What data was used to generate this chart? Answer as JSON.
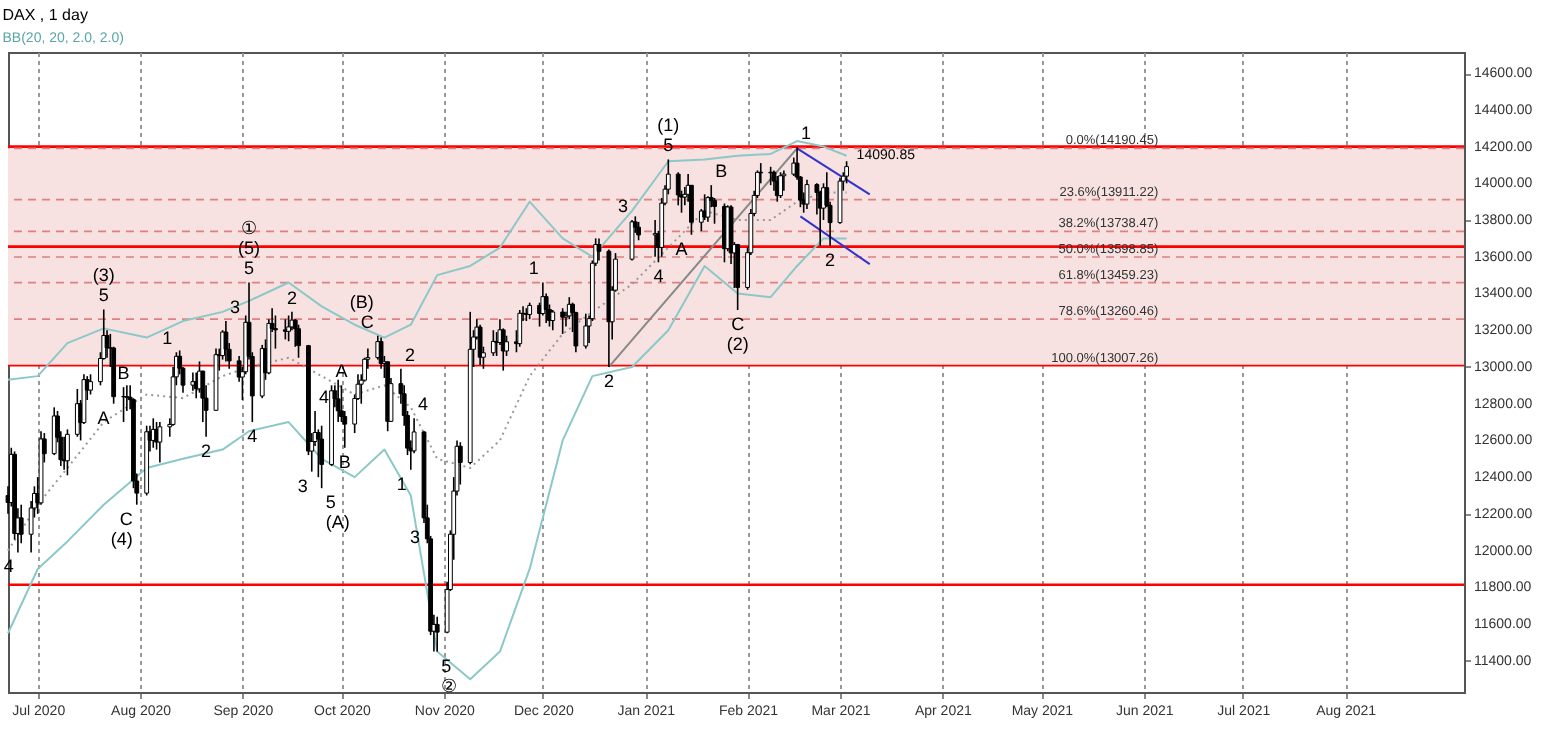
{
  "chart_data": {
    "type": "candlestick",
    "title": "DAX , 1 day",
    "subtitle": "BB(20, 20, 2.0, 2.0)",
    "color": "#000000",
    "x": [
      "2020-06-22",
      "2020-06-23",
      "2020-06-24",
      "2020-06-25",
      "2020-06-26",
      "2020-06-29",
      "2020-06-30",
      "2020-07-01",
      "2020-07-02",
      "2020-07-03",
      "2020-07-06",
      "2020-07-07",
      "2020-07-08",
      "2020-07-09",
      "2020-07-10",
      "2020-07-13",
      "2020-07-14",
      "2020-07-15",
      "2020-07-16",
      "2020-07-17",
      "2020-07-20",
      "2020-07-21",
      "2020-07-22",
      "2020-07-23",
      "2020-07-24",
      "2020-07-27",
      "2020-07-28",
      "2020-07-29",
      "2020-07-30",
      "2020-07-31",
      "2020-08-03",
      "2020-08-04",
      "2020-08-05",
      "2020-08-06",
      "2020-08-07",
      "2020-08-10",
      "2020-08-11",
      "2020-08-12",
      "2020-08-13",
      "2020-08-14",
      "2020-08-17",
      "2020-08-18",
      "2020-08-19",
      "2020-08-20",
      "2020-08-21",
      "2020-08-24",
      "2020-08-25",
      "2020-08-26",
      "2020-08-27",
      "2020-08-28",
      "2020-08-31",
      "2020-09-01",
      "2020-09-02",
      "2020-09-03",
      "2020-09-04",
      "2020-09-07",
      "2020-09-08",
      "2020-09-09",
      "2020-09-10",
      "2020-09-11",
      "2020-09-14",
      "2020-09-15",
      "2020-09-16",
      "2020-09-17",
      "2020-09-18",
      "2020-09-21",
      "2020-09-22",
      "2020-09-23",
      "2020-09-24",
      "2020-09-25",
      "2020-09-28",
      "2020-09-29",
      "2020-09-30",
      "2020-10-01",
      "2020-10-02",
      "2020-10-05",
      "2020-10-06",
      "2020-10-07",
      "2020-10-08",
      "2020-10-09",
      "2020-10-12",
      "2020-10-13",
      "2020-10-14",
      "2020-10-15",
      "2020-10-16",
      "2020-10-19",
      "2020-10-20",
      "2020-10-21",
      "2020-10-22",
      "2020-10-23",
      "2020-10-26",
      "2020-10-27",
      "2020-10-28",
      "2020-10-29",
      "2020-10-30",
      "2020-11-02",
      "2020-11-03",
      "2020-11-04",
      "2020-11-05",
      "2020-11-06",
      "2020-11-09",
      "2020-11-10",
      "2020-11-11",
      "2020-11-12",
      "2020-11-13",
      "2020-11-16",
      "2020-11-17",
      "2020-11-18",
      "2020-11-19",
      "2020-11-20",
      "2020-11-23",
      "2020-11-24",
      "2020-11-25",
      "2020-11-26",
      "2020-11-27",
      "2020-11-30",
      "2020-12-01",
      "2020-12-02",
      "2020-12-03",
      "2020-12-04",
      "2020-12-07",
      "2020-12-08",
      "2020-12-09",
      "2020-12-10",
      "2020-12-11",
      "2020-12-14",
      "2020-12-15",
      "2020-12-16",
      "2020-12-17",
      "2020-12-18",
      "2020-12-21",
      "2020-12-22",
      "2020-12-23",
      "2020-12-28",
      "2020-12-29",
      "2020-12-30",
      "2021-01-04",
      "2021-01-05",
      "2021-01-06",
      "2021-01-07",
      "2021-01-08",
      "2021-01-11",
      "2021-01-12",
      "2021-01-13",
      "2021-01-14",
      "2021-01-15",
      "2021-01-18",
      "2021-01-19",
      "2021-01-20",
      "2021-01-21",
      "2021-01-22",
      "2021-01-25",
      "2021-01-26",
      "2021-01-27",
      "2021-01-28",
      "2021-01-29",
      "2021-02-01",
      "2021-02-02",
      "2021-02-03",
      "2021-02-04",
      "2021-02-05",
      "2021-02-08",
      "2021-02-09",
      "2021-02-10",
      "2021-02-11",
      "2021-02-12",
      "2021-02-15",
      "2021-02-16",
      "2021-02-17",
      "2021-02-18",
      "2021-02-19",
      "2021-02-22",
      "2021-02-23",
      "2021-02-24",
      "2021-02-25",
      "2021-02-26",
      "2021-03-01",
      "2021-03-02",
      "2021-03-03"
    ],
    "ohlc": [
      [
        12300,
        12350,
        12200,
        12262
      ],
      [
        12262,
        12560,
        12240,
        12524
      ],
      [
        12524,
        12540,
        12060,
        12093
      ],
      [
        12093,
        12230,
        11990,
        12178
      ],
      [
        12178,
        12250,
        12040,
        12089
      ],
      [
        12089,
        12270,
        11990,
        12232
      ],
      [
        12232,
        12350,
        12180,
        12311
      ],
      [
        12311,
        12400,
        12200,
        12260
      ],
      [
        12260,
        12650,
        12250,
        12608
      ],
      [
        12608,
        12640,
        12480,
        12528
      ],
      [
        12528,
        12780,
        12520,
        12733
      ],
      [
        12733,
        12760,
        12590,
        12617
      ],
      [
        12617,
        12650,
        12460,
        12495
      ],
      [
        12495,
        12620,
        12440,
        12489
      ],
      [
        12489,
        12660,
        12410,
        12633
      ],
      [
        12633,
        12880,
        12620,
        12800
      ],
      [
        12800,
        12820,
        12600,
        12697
      ],
      [
        12697,
        12960,
        12690,
        12931
      ],
      [
        12931,
        12950,
        12820,
        12874
      ],
      [
        12874,
        12960,
        12850,
        12920
      ],
      [
        12920,
        13080,
        12900,
        13046
      ],
      [
        13046,
        13313,
        13040,
        13171
      ],
      [
        13171,
        13200,
        13050,
        13104
      ],
      [
        13104,
        13180,
        13000,
        13103
      ],
      [
        13103,
        13110,
        12800,
        12838
      ],
      [
        12838,
        12890,
        12700,
        12838
      ],
      [
        12838,
        12900,
        12760,
        12835
      ],
      [
        12835,
        12900,
        12770,
        12822
      ],
      [
        12822,
        12830,
        12340,
        12379
      ],
      [
        12379,
        12420,
        12250,
        12313
      ],
      [
        12313,
        12680,
        12300,
        12647
      ],
      [
        12647,
        12680,
        12540,
        12600
      ],
      [
        12600,
        12720,
        12560,
        12660
      ],
      [
        12660,
        12700,
        12550,
        12591
      ],
      [
        12591,
        12700,
        12480,
        12674
      ],
      [
        12674,
        12720,
        12620,
        12687
      ],
      [
        12687,
        13000,
        12680,
        12946
      ],
      [
        12946,
        13080,
        12900,
        13058
      ],
      [
        13058,
        13090,
        12960,
        12993
      ],
      [
        12993,
        13000,
        12860,
        12901
      ],
      [
        12901,
        12970,
        12870,
        12920
      ],
      [
        12920,
        12970,
        12830,
        12881
      ],
      [
        12881,
        13030,
        12860,
        12977
      ],
      [
        12977,
        12980,
        12700,
        12830
      ],
      [
        12830,
        12900,
        12620,
        12764
      ],
      [
        12764,
        13100,
        12760,
        13067
      ],
      [
        13067,
        13100,
        12980,
        13062
      ],
      [
        13062,
        13200,
        13040,
        13190
      ],
      [
        13190,
        13250,
        13030,
        13096
      ],
      [
        13096,
        13130,
        12990,
        13033
      ],
      [
        13033,
        13060,
        12920,
        12945
      ],
      [
        12945,
        13000,
        12820,
        12974
      ],
      [
        12974,
        13280,
        12960,
        13243
      ],
      [
        13243,
        13460,
        13040,
        13057
      ],
      [
        13057,
        13080,
        12700,
        12842
      ],
      [
        12842,
        13120,
        12830,
        13100
      ],
      [
        13100,
        13150,
        12930,
        12968
      ],
      [
        12968,
        13260,
        12960,
        13237
      ],
      [
        13237,
        13320,
        13190,
        13209
      ],
      [
        13209,
        13280,
        13100,
        13202
      ],
      [
        13202,
        13260,
        13150,
        13194
      ],
      [
        13194,
        13280,
        13140,
        13218
      ],
      [
        13218,
        13300,
        13200,
        13255
      ],
      [
        13255,
        13260,
        13110,
        13208
      ],
      [
        13208,
        13230,
        13050,
        13116
      ],
      [
        13116,
        13120,
        12520,
        12542
      ],
      [
        12542,
        12640,
        12430,
        12594
      ],
      [
        12594,
        12760,
        12570,
        12643
      ],
      [
        12643,
        12660,
        12400,
        12607
      ],
      [
        12607,
        12680,
        12340,
        12469
      ],
      [
        12469,
        12900,
        12460,
        12870
      ],
      [
        12870,
        12900,
        12780,
        12826
      ],
      [
        12826,
        12930,
        12700,
        12761
      ],
      [
        12761,
        12900,
        12700,
        12730
      ],
      [
        12730,
        12760,
        12560,
        12689
      ],
      [
        12689,
        12850,
        12640,
        12828
      ],
      [
        12828,
        12960,
        12820,
        12906
      ],
      [
        12906,
        12960,
        12800,
        12928
      ],
      [
        12928,
        13050,
        12920,
        13042
      ],
      [
        13042,
        13100,
        12990,
        13051
      ],
      [
        13051,
        13170,
        13040,
        13138
      ],
      [
        13138,
        13160,
        12990,
        13019
      ],
      [
        13019,
        13060,
        12940,
        13028
      ],
      [
        13028,
        13030,
        12650,
        12704
      ],
      [
        12704,
        12940,
        12700,
        12909
      ],
      [
        12909,
        12990,
        12800,
        12854
      ],
      [
        12854,
        12900,
        12680,
        12736
      ],
      [
        12736,
        12760,
        12520,
        12558
      ],
      [
        12558,
        12600,
        12440,
        12543
      ],
      [
        12543,
        12720,
        12530,
        12646
      ],
      [
        12646,
        12650,
        12150,
        12178
      ],
      [
        12178,
        12250,
        12040,
        12064
      ],
      [
        12064,
        12080,
        11540,
        11561
      ],
      [
        11561,
        11650,
        11450,
        11598
      ],
      [
        11598,
        11640,
        11450,
        11556
      ],
      [
        11556,
        11830,
        11550,
        11788
      ],
      [
        11788,
        12110,
        11780,
        12089
      ],
      [
        12089,
        12400,
        11950,
        12324
      ],
      [
        12324,
        12600,
        12300,
        12568
      ],
      [
        12568,
        12590,
        12360,
        12480
      ],
      [
        12480,
        13300,
        12470,
        13096
      ],
      [
        13096,
        13200,
        13000,
        13163
      ],
      [
        13163,
        13260,
        13150,
        13217
      ],
      [
        13217,
        13230,
        13010,
        13053
      ],
      [
        13053,
        13110,
        12990,
        13077
      ],
      [
        13077,
        13200,
        13060,
        13139
      ],
      [
        13139,
        13190,
        13060,
        13133
      ],
      [
        13133,
        13260,
        13120,
        13202
      ],
      [
        13202,
        13210,
        12980,
        13087
      ],
      [
        13087,
        13170,
        13060,
        13137
      ],
      [
        13137,
        13200,
        13080,
        13127
      ],
      [
        13127,
        13310,
        13110,
        13292
      ],
      [
        13292,
        13330,
        13250,
        13290
      ],
      [
        13290,
        13320,
        13250,
        13286
      ],
      [
        13286,
        13350,
        13260,
        13335
      ],
      [
        13335,
        13350,
        13220,
        13291
      ],
      [
        13291,
        13460,
        13280,
        13383
      ],
      [
        13383,
        13400,
        13240,
        13313
      ],
      [
        13313,
        13340,
        13220,
        13253
      ],
      [
        13253,
        13310,
        13200,
        13299
      ],
      [
        13299,
        13320,
        13180,
        13271
      ],
      [
        13271,
        13300,
        13220,
        13278
      ],
      [
        13278,
        13380,
        13260,
        13341
      ],
      [
        13341,
        13350,
        13190,
        13296
      ],
      [
        13296,
        13300,
        13080,
        13114
      ],
      [
        13114,
        13290,
        13100,
        13223
      ],
      [
        13223,
        13280,
        13130,
        13263
      ],
      [
        13263,
        13580,
        13250,
        13565
      ],
      [
        13565,
        13700,
        13550,
        13667
      ],
      [
        13667,
        13700,
        13580,
        13630
      ],
      [
        13630,
        13640,
        13000,
        13246
      ],
      [
        13246,
        13440,
        13150,
        13418
      ],
      [
        13418,
        13620,
        13410,
        13587
      ],
      [
        13587,
        13800,
        13580,
        13790
      ],
      [
        13790,
        13820,
        13730,
        13761
      ],
      [
        13761,
        13790,
        13690,
        13719
      ],
      [
        13719,
        13800,
        13600,
        13726
      ],
      [
        13726,
        13740,
        13570,
        13651
      ],
      [
        13651,
        13920,
        13600,
        13892
      ],
      [
        13892,
        13990,
        13880,
        13968
      ],
      [
        13968,
        14130,
        13940,
        14050
      ],
      [
        14050,
        14060,
        13880,
        13937
      ],
      [
        13937,
        13960,
        13840,
        13925
      ],
      [
        13925,
        13980,
        13880,
        13940
      ],
      [
        13940,
        14050,
        13900,
        13989
      ],
      [
        13989,
        13990,
        13720,
        13788
      ],
      [
        13788,
        13860,
        13740,
        13849
      ],
      [
        13849,
        13940,
        13800,
        13816
      ],
      [
        13816,
        13930,
        13790,
        13922
      ],
      [
        13922,
        13990,
        13870,
        13907
      ],
      [
        13907,
        13920,
        13780,
        13874
      ],
      [
        13874,
        13890,
        13570,
        13644
      ],
      [
        13644,
        13880,
        13630,
        13871
      ],
      [
        13871,
        13880,
        13560,
        13621
      ],
      [
        13621,
        13680,
        13430,
        13666
      ],
      [
        13666,
        13670,
        13310,
        13433
      ],
      [
        13433,
        13650,
        13420,
        13622
      ],
      [
        13622,
        13860,
        13610,
        13836
      ],
      [
        13836,
        13960,
        13820,
        13934
      ],
      [
        13934,
        14070,
        13920,
        14060
      ],
      [
        14060,
        14110,
        14000,
        14057
      ],
      [
        14057,
        14090,
        13990,
        14060
      ],
      [
        14060,
        14070,
        13960,
        14012
      ],
      [
        14012,
        14040,
        13900,
        13933
      ],
      [
        13933,
        14060,
        13920,
        14041
      ],
      [
        14041,
        14070,
        13960,
        14050
      ],
      [
        14050,
        14140,
        14040,
        14110
      ],
      [
        14110,
        14197,
        14020,
        14034
      ],
      [
        14034,
        14040,
        13870,
        13909
      ],
      [
        13909,
        13950,
        13840,
        13887
      ],
      [
        13887,
        14020,
        13860,
        13993
      ],
      [
        13993,
        14000,
        13830,
        13950
      ],
      [
        13950,
        13960,
        13660,
        13865
      ],
      [
        13865,
        14000,
        13800,
        13976
      ],
      [
        13976,
        14060,
        13870,
        13880
      ],
      [
        13880,
        13900,
        13660,
        13786
      ],
      [
        13786,
        14030,
        13780,
        14012
      ],
      [
        14012,
        14060,
        13960,
        14039
      ],
      [
        14039,
        14120,
        14000,
        14090.85
      ]
    ],
    "series": [
      {
        "type": "line",
        "color": "#8cc8c8",
        "line_style": "solid",
        "x": [
          "2020-06-22",
          "2020-07-01",
          "2020-07-10",
          "2020-07-21",
          "2020-08-03",
          "2020-08-14",
          "2020-08-26",
          "2020-09-03",
          "2020-09-15",
          "2020-09-25",
          "2020-10-05",
          "2020-10-14",
          "2020-10-22",
          "2020-10-30",
          "2020-11-09",
          "2020-11-18",
          "2020-11-27",
          "2020-12-07",
          "2020-12-16",
          "2020-12-28",
          "2021-01-08",
          "2021-01-19",
          "2021-01-29",
          "2021-02-08",
          "2021-02-16",
          "2021-02-24",
          "2021-03-03"
        ],
        "values": [
          12930,
          12950,
          13130,
          13210,
          13160,
          13250,
          13300,
          13360,
          13460,
          13330,
          13230,
          13160,
          13230,
          13500,
          13550,
          13650,
          13900,
          13700,
          13600,
          13850,
          14120,
          14130,
          14150,
          14160,
          14230,
          14200,
          14150
        ]
      },
      {
        "type": "line",
        "color": "#999999",
        "line_style": "dotted",
        "x": [
          "2020-06-22",
          "2020-07-01",
          "2020-07-10",
          "2020-07-21",
          "2020-08-03",
          "2020-08-14",
          "2020-08-26",
          "2020-09-03",
          "2020-09-15",
          "2020-09-25",
          "2020-10-05",
          "2020-10-14",
          "2020-10-22",
          "2020-10-30",
          "2020-11-09",
          "2020-11-18",
          "2020-11-27",
          "2020-12-07",
          "2020-12-16",
          "2020-12-28",
          "2021-01-08",
          "2021-01-19",
          "2021-01-29",
          "2021-02-08",
          "2021-02-16",
          "2021-02-24",
          "2021-03-03"
        ],
        "values": [
          12000,
          12250,
          12450,
          12700,
          12850,
          12830,
          12950,
          13000,
          13050,
          12950,
          12850,
          12900,
          12780,
          12500,
          12450,
          12600,
          12950,
          13180,
          13300,
          13450,
          13650,
          13850,
          13800,
          13800,
          13900,
          13950,
          13950
        ]
      },
      {
        "type": "line",
        "color": "#8cc8c8",
        "line_style": "solid",
        "x": [
          "2020-06-22",
          "2020-07-01",
          "2020-07-10",
          "2020-07-21",
          "2020-08-03",
          "2020-08-14",
          "2020-08-26",
          "2020-09-03",
          "2020-09-15",
          "2020-09-25",
          "2020-10-05",
          "2020-10-14",
          "2020-10-22",
          "2020-10-30",
          "2020-11-09",
          "2020-11-18",
          "2020-11-27",
          "2020-12-07",
          "2020-12-16",
          "2020-12-28",
          "2021-01-08",
          "2021-01-19",
          "2021-01-29",
          "2021-02-08",
          "2021-02-16",
          "2021-02-24",
          "2021-03-03"
        ],
        "values": [
          11550,
          11900,
          12050,
          12250,
          12450,
          12500,
          12550,
          12650,
          12700,
          12500,
          12400,
          12550,
          12300,
          11450,
          11300,
          11450,
          11900,
          12600,
          12950,
          13000,
          13200,
          13550,
          13400,
          13380,
          13550,
          13700,
          13700
        ]
      },
      {
        "type": "line",
        "color": "#888888",
        "line_style": "solid",
        "x": [
          "2020-12-21",
          "2021-02-16"
        ],
        "values": [
          13000,
          14190
        ]
      },
      {
        "type": "line",
        "color": "#3333cc",
        "line_style": "solid",
        "x": [
          "2021-02-16",
          "2021-03-10"
        ],
        "values": [
          14190,
          13940
        ]
      },
      {
        "type": "line",
        "color": "#3333cc",
        "line_style": "solid",
        "x": [
          "2021-02-17",
          "2021-03-10"
        ],
        "values": [
          13820,
          13560
        ]
      }
    ],
    "xlim": [
      "2020-06-22",
      "2021-09-06"
    ],
    "xticks": [
      {
        "value": "2020-07-01",
        "label": "Jul 2020"
      },
      {
        "value": "2020-08-01",
        "label": "Aug 2020"
      },
      {
        "value": "2020-09-01",
        "label": "Sep 2020"
      },
      {
        "value": "2020-10-01",
        "label": "Oct 2020"
      },
      {
        "value": "2020-11-01",
        "label": "Nov 2020"
      },
      {
        "value": "2020-12-01",
        "label": "Dec 2020"
      },
      {
        "value": "2021-01-01",
        "label": "Jan 2021"
      },
      {
        "value": "2021-02-01",
        "label": "Feb 2021"
      },
      {
        "value": "2021-03-01",
        "label": "Mar 2021"
      },
      {
        "value": "2021-04-01",
        "label": "Apr 2021"
      },
      {
        "value": "2021-05-01",
        "label": "May 2021"
      },
      {
        "value": "2021-06-01",
        "label": "Jun 2021"
      },
      {
        "value": "2021-07-01",
        "label": "Jul 2021"
      },
      {
        "value": "2021-08-01",
        "label": "Aug 2021"
      }
    ],
    "ylim": [
      11230,
      14715
    ],
    "yticks": [
      {
        "value": 11400,
        "label": "11400.00"
      },
      {
        "value": 11600,
        "label": "11600.00"
      },
      {
        "value": 11800,
        "label": "11800.00"
      },
      {
        "value": 12000,
        "label": "12000.00"
      },
      {
        "value": 12200,
        "label": "12200.00"
      },
      {
        "value": 12400,
        "label": "12400.00"
      },
      {
        "value": 12600,
        "label": "12600.00"
      },
      {
        "value": 12800,
        "label": "12800.00"
      },
      {
        "value": 13000,
        "label": "13000.00"
      },
      {
        "value": 13200,
        "label": "13200.00"
      },
      {
        "value": 13400,
        "label": "13400.00"
      },
      {
        "value": 13600,
        "label": "13600.00"
      },
      {
        "value": 13800,
        "label": "13800.00"
      },
      {
        "value": 14000,
        "label": "14000.00"
      },
      {
        "value": 14200,
        "label": "14200.00"
      },
      {
        "value": 14400,
        "label": "14400.00"
      },
      {
        "value": 14600,
        "label": "14600.00"
      }
    ],
    "grid": "x",
    "bands": [
      {
        "axis": "y",
        "from": 13007.26,
        "to": 14190.45,
        "color": "#f7e1e1"
      }
    ],
    "ref_lines": [
      {
        "axis": "y",
        "value": 14200,
        "color": "#ff0000",
        "line_style": "solid"
      },
      {
        "axis": "y",
        "value": 13655,
        "color": "#ff0000",
        "line_style": "solid"
      },
      {
        "axis": "y",
        "value": 11814,
        "color": "#ff0000",
        "line_style": "solid"
      },
      {
        "axis": "y",
        "value": 14190.45,
        "label": "0.0%(14190.45)",
        "color": "#e08080",
        "line_style": "dashed"
      },
      {
        "axis": "y",
        "value": 13911.22,
        "label": "23.6%(13911.22)",
        "color": "#e08080",
        "line_style": "dashed"
      },
      {
        "axis": "y",
        "value": 13738.47,
        "label": "38.2%(13738.47)",
        "color": "#e08080",
        "line_style": "dashed"
      },
      {
        "axis": "y",
        "value": 13598.85,
        "label": "50.0%(13598.85)",
        "color": "#e08080",
        "line_style": "dashed"
      },
      {
        "axis": "y",
        "value": 13459.23,
        "label": "61.8%(13459.23)",
        "color": "#e08080",
        "line_style": "dashed"
      },
      {
        "axis": "y",
        "value": 13260.46,
        "label": "78.6%(13260.46)",
        "color": "#e08080",
        "line_style": "dashed"
      },
      {
        "axis": "y",
        "value": 13007.26,
        "label": "100.0%(13007.26)",
        "color": "#ff0000",
        "line_style": "solid"
      }
    ],
    "annotations": [
      {
        "text": "4",
        "x": "2020-06-25",
        "y": 11990
      },
      {
        "text": "5",
        "x": "2020-07-21",
        "y": 13313
      },
      {
        "text": "(3)",
        "x": "2020-07-21",
        "y": 13313
      },
      {
        "text": "B",
        "x": "2020-07-27",
        "y": 12890
      },
      {
        "text": "A",
        "x": "2020-07-24",
        "y": 12800
      },
      {
        "text": "C",
        "x": "2020-07-31",
        "y": 12250
      },
      {
        "text": "(4)",
        "x": "2020-07-31",
        "y": 12250
      },
      {
        "text": "1",
        "x": "2020-08-12",
        "y": 13080
      },
      {
        "text": "2",
        "x": "2020-08-21",
        "y": 12620
      },
      {
        "text": "3",
        "x": "2020-08-27",
        "y": 13250
      },
      {
        "text": "4",
        "x": "2020-09-04",
        "y": 12700
      },
      {
        "text": "5",
        "x": "2020-09-03",
        "y": 13460
      },
      {
        "text": "(5)",
        "x": "2020-09-03",
        "y": 13460
      },
      {
        "text": "①",
        "x": "2020-09-03",
        "y": 13460
      },
      {
        "text": "2",
        "x": "2020-09-16",
        "y": 13300
      },
      {
        "text": "4",
        "x": "2020-09-23",
        "y": 12760
      },
      {
        "text": "3",
        "x": "2020-09-22",
        "y": 12430
      },
      {
        "text": "A",
        "x": "2020-10-01",
        "y": 12900
      },
      {
        "text": "5",
        "x": "2020-09-25",
        "y": 12340
      },
      {
        "text": "(A)",
        "x": "2020-09-25",
        "y": 12340
      },
      {
        "text": "B",
        "x": "2020-10-02",
        "y": 12560
      },
      {
        "text": "C",
        "x": "2020-10-12",
        "y": 13170
      },
      {
        "text": "(B)",
        "x": "2020-10-12",
        "y": 13170
      },
      {
        "text": "2",
        "x": "2020-10-19",
        "y": 12990
      },
      {
        "text": "1",
        "x": "2020-10-22",
        "y": 12440
      },
      {
        "text": "4",
        "x": "2020-10-23",
        "y": 12720
      },
      {
        "text": "3",
        "x": "2020-10-26",
        "y": 12150
      },
      {
        "text": "5",
        "x": "2020-10-30",
        "y": 11450
      },
      {
        "text": "②",
        "x": "2020-10-30",
        "y": 11450
      },
      {
        "text": "1",
        "x": "2020-12-01",
        "y": 13460
      },
      {
        "text": "2",
        "x": "2020-12-21",
        "y": 13000
      },
      {
        "text": "3",
        "x": "2020-12-28",
        "y": 13800
      },
      {
        "text": "4",
        "x": "2021-01-05",
        "y": 13570
      },
      {
        "text": "5",
        "x": "2021-01-08",
        "y": 14130
      },
      {
        "text": "(1)",
        "x": "2021-01-08",
        "y": 14130
      },
      {
        "text": "A",
        "x": "2021-01-15",
        "y": 13720
      },
      {
        "text": "B",
        "x": "2021-01-21",
        "y": 13990
      },
      {
        "text": "C",
        "x": "2021-01-29",
        "y": 13310
      },
      {
        "text": "(2)",
        "x": "2021-01-29",
        "y": 13310
      },
      {
        "text": "1",
        "x": "2021-02-16",
        "y": 14197
      },
      {
        "text": "2",
        "x": "2021-02-26",
        "y": 13660
      },
      {
        "text": "14090.85",
        "x": "2021-03-03",
        "y": 14090.85
      }
    ]
  }
}
